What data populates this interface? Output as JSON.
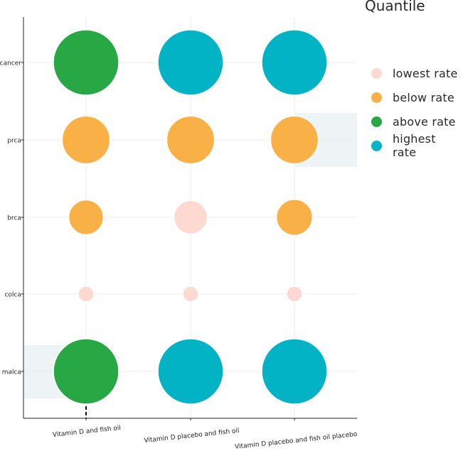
{
  "chart_data": {
    "type": "scatter",
    "subtype": "bubble-matrix",
    "title": "",
    "xlabel": "",
    "ylabel": "",
    "x_categories": [
      "Vitamin D and fish oil",
      "Vitamin D placebo and fish oil",
      "Vitamin D placebo and fish oil placebo"
    ],
    "y_categories": [
      "cancer",
      "prca",
      "brca",
      "colca",
      "malca"
    ],
    "legend": {
      "title": "Quantile",
      "placement": "right",
      "items": [
        {
          "name": "lowest rate",
          "color": "#fdd9d2"
        },
        {
          "name": "below rate",
          "color": "#f9b046"
        },
        {
          "name": "above rate",
          "color": "#27a844"
        },
        {
          "name": "highest rate",
          "color": "#02b3c6"
        }
      ]
    },
    "points": [
      {
        "x": "Vitamin D and fish oil",
        "y": "cancer",
        "size": 1.0,
        "quantile": "above rate"
      },
      {
        "x": "Vitamin D placebo and fish oil",
        "y": "cancer",
        "size": 1.0,
        "quantile": "highest rate"
      },
      {
        "x": "Vitamin D placebo and fish oil placebo",
        "y": "cancer",
        "size": 1.0,
        "quantile": "highest rate"
      },
      {
        "x": "Vitamin D and fish oil",
        "y": "prca",
        "size": 0.73,
        "quantile": "below rate"
      },
      {
        "x": "Vitamin D placebo and fish oil",
        "y": "prca",
        "size": 0.73,
        "quantile": "below rate"
      },
      {
        "x": "Vitamin D placebo and fish oil placebo",
        "y": "prca",
        "size": 0.73,
        "quantile": "below rate"
      },
      {
        "x": "Vitamin D and fish oil",
        "y": "brca",
        "size": 0.53,
        "quantile": "below rate"
      },
      {
        "x": "Vitamin D placebo and fish oil",
        "y": "brca",
        "size": 0.51,
        "quantile": "lowest rate"
      },
      {
        "x": "Vitamin D placebo and fish oil placebo",
        "y": "brca",
        "size": 0.55,
        "quantile": "below rate"
      },
      {
        "x": "Vitamin D and fish oil",
        "y": "colca",
        "size": 0.24,
        "quantile": "lowest rate"
      },
      {
        "x": "Vitamin D placebo and fish oil",
        "y": "colca",
        "size": 0.24,
        "quantile": "lowest rate"
      },
      {
        "x": "Vitamin D placebo and fish oil placebo",
        "y": "colca",
        "size": 0.24,
        "quantile": "lowest rate"
      },
      {
        "x": "Vitamin D and fish oil",
        "y": "malca",
        "size": 1.0,
        "quantile": "above rate"
      },
      {
        "x": "Vitamin D placebo and fish oil",
        "y": "malca",
        "size": 1.0,
        "quantile": "highest rate"
      },
      {
        "x": "Vitamin D placebo and fish oil placebo",
        "y": "malca",
        "size": 1.0,
        "quantile": "highest rate"
      }
    ],
    "grid": true
  }
}
